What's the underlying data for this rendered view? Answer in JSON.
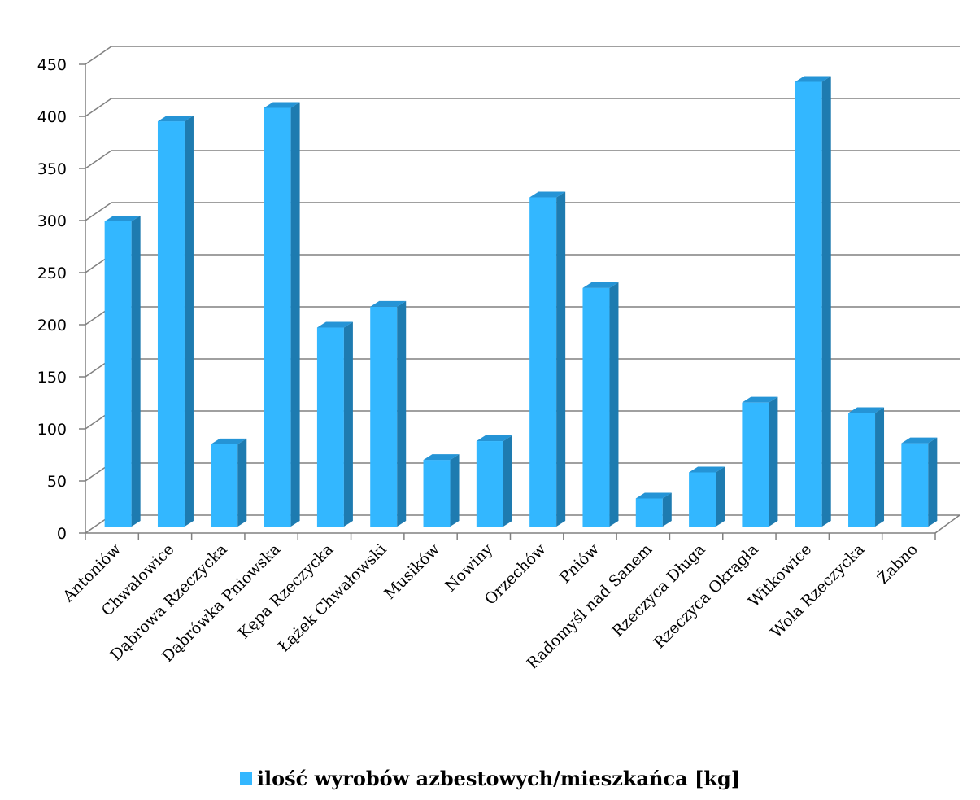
{
  "chart_data": {
    "type": "bar",
    "categories": [
      "Antoniów",
      "Chwałowice",
      "Dąbrowa Rzeczycka",
      "Dąbrówka Pniowska",
      "Kępa Rzeczycka",
      "Łążek Chwałowski",
      "Musików",
      "Nowiny",
      "Orzechów",
      "Pniów",
      "Radomyśl nad Sanem",
      "Rzeczyca Długa",
      "Rzeczyca Okrągła",
      "Witkowice",
      "Wola Rzeczycka",
      "Żabno"
    ],
    "series": [
      {
        "name": "ilość wyrobów azbestowych/mieszkańca [kg]",
        "values": [
          293,
          389,
          79,
          402,
          191,
          211,
          64,
          82,
          316,
          229,
          27,
          52,
          119,
          427,
          109,
          80
        ]
      }
    ],
    "ylim": [
      0,
      450
    ],
    "yticks": [
      0,
      50,
      100,
      150,
      200,
      250,
      300,
      350,
      400,
      450
    ],
    "grid": true,
    "legend": "bottom",
    "style": "3d-column"
  },
  "colors": {
    "bar_front": "#33b7ff",
    "bar_side": "#1e7bb0",
    "bar_top": "#2594d6",
    "grid": "#808080"
  }
}
